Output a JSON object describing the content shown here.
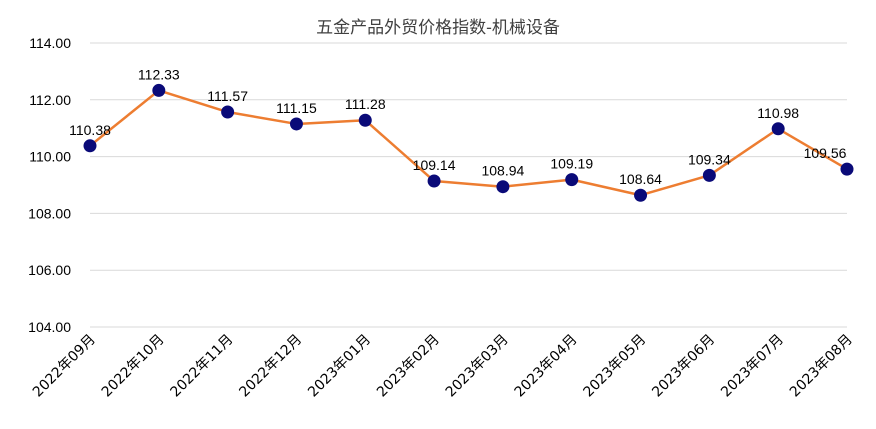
{
  "chart_data": {
    "type": "line",
    "title": "五金产品外贸价格指数-机械设备",
    "xlabel": "",
    "ylabel": "",
    "categories": [
      "2022年09月",
      "2022年10月",
      "2022年11月",
      "2022年12月",
      "2023年01月",
      "2023年02月",
      "2023年03月",
      "2023年04月",
      "2023年05月",
      "2023年06月",
      "2023年07月",
      "2023年08月"
    ],
    "values": [
      110.38,
      112.33,
      111.57,
      111.15,
      111.28,
      109.14,
      108.94,
      109.19,
      108.64,
      109.34,
      110.98,
      109.56
    ],
    "value_labels": [
      "110.38",
      "112.33",
      "111.57",
      "111.15",
      "111.28",
      "109.14",
      "108.94",
      "109.19",
      "108.64",
      "109.34",
      "110.98",
      "109.56"
    ],
    "ylim": [
      104,
      114
    ],
    "yticks": [
      "104.00",
      "106.00",
      "108.00",
      "110.00",
      "112.00",
      "114.00"
    ],
    "grid": true,
    "legend": "none",
    "colors": {
      "line": "#ED7D31",
      "marker": "#0A0A78",
      "grid": "#D9D9D9",
      "title": "#404040"
    }
  }
}
